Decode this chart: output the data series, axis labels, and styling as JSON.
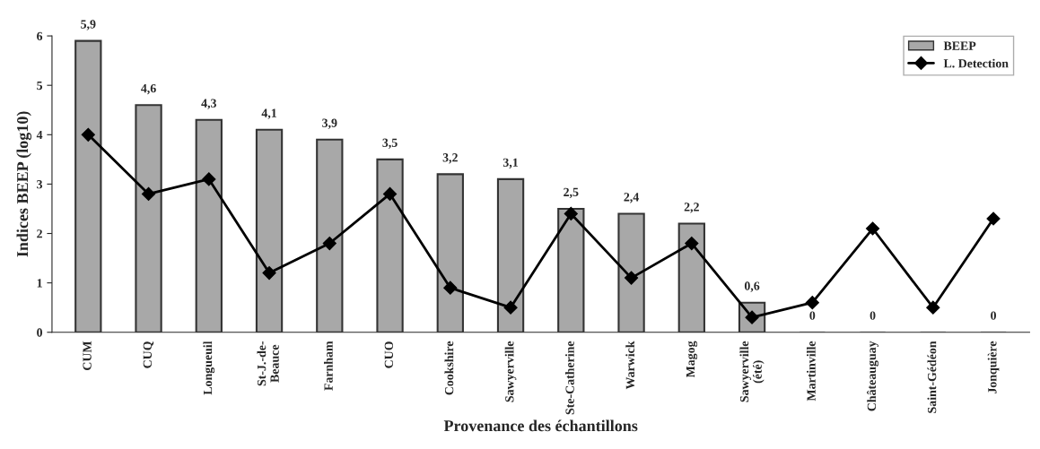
{
  "chart_data": {
    "type": "bar",
    "ylabel": "Indices BEEP (log10)",
    "xlabel": "Provenance des échantillons",
    "categories": [
      "CUM",
      "CUQ",
      "Longueuil",
      "St-J.-de-\nBeauce",
      "Farnham",
      "CUO",
      "Cookshire",
      "Sawyerville",
      "Ste-Catherine",
      "Warwick",
      "Magog",
      "Sawyerville\n(été)",
      "Martinville",
      "Châteauguay",
      "Saint-Gédéon",
      "Jonquière"
    ],
    "series": [
      {
        "name": "BEEP",
        "color": "#a8a8a8",
        "values": [
          5.9,
          4.6,
          4.3,
          4.1,
          3.9,
          3.5,
          3.2,
          3.1,
          2.5,
          2.4,
          2.2,
          0.6,
          0,
          0,
          0,
          0
        ],
        "value_labels": [
          "5,9",
          "4,6",
          "4,3",
          "4,1",
          "3,9",
          "3,5",
          "3,2",
          "3,1",
          "2,5",
          "2,4",
          "2,2",
          "0,6",
          "0",
          "0",
          null,
          "0"
        ]
      },
      {
        "name": "L. Detection",
        "type": "line",
        "color": "#000000",
        "marker": "diamond",
        "values": [
          4.0,
          2.8,
          3.1,
          1.2,
          1.8,
          2.8,
          0.9,
          0.5,
          2.4,
          1.1,
          1.8,
          0.3,
          0.6,
          2.1,
          0.5,
          2.3
        ]
      }
    ],
    "ylim": [
      0,
      6
    ],
    "yticks": [
      0,
      1,
      2,
      3,
      4,
      5,
      6
    ],
    "grid": false,
    "legend": "top right"
  }
}
